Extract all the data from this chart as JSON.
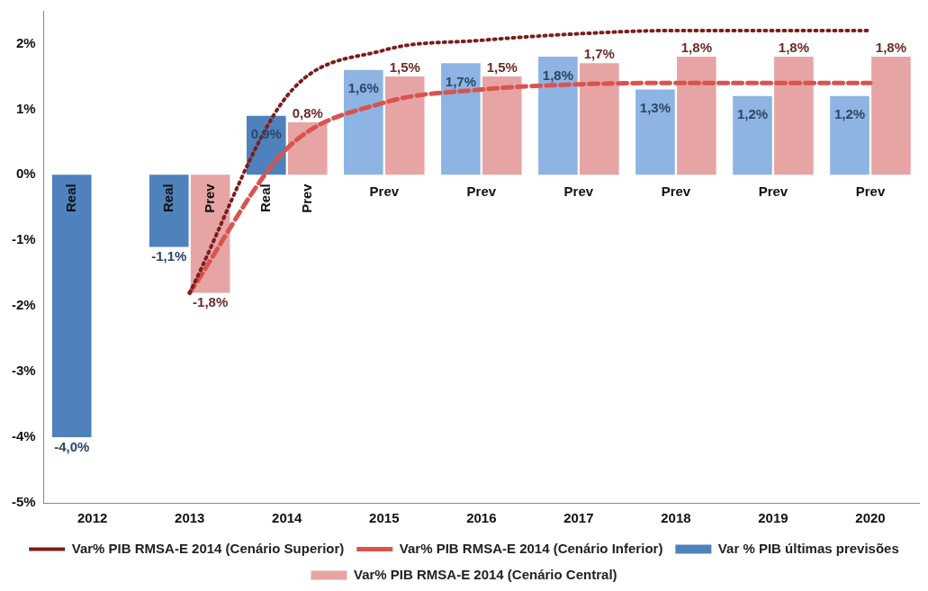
{
  "chart_data": {
    "type": "bar",
    "categories": [
      "2012",
      "2013",
      "2014",
      "2015",
      "2016",
      "2017",
      "2018",
      "2019",
      "2020"
    ],
    "series": [
      {
        "name": "Var % PIB últimas previsões",
        "color": "#4f81bd",
        "colors": [
          "#4f81bd",
          "#4f81bd",
          "#4f81bd",
          "#8db4e2",
          "#8db4e2",
          "#8db4e2",
          "#8db4e2",
          "#8db4e2",
          "#8db4e2"
        ],
        "values": [
          -4.0,
          -1.1,
          0.9,
          1.6,
          1.7,
          1.8,
          1.3,
          1.2,
          1.2
        ],
        "value_labels": [
          "-4,0%",
          "-1,1%",
          "0,9%",
          "1,6%",
          "1,7%",
          "1,8%",
          "1,3%",
          "1,2%",
          "1,2%"
        ]
      },
      {
        "name": "Var% PIB RMSA-E 2014 (Cenário Central)",
        "color": "#c0504d",
        "colors": [
          "#e6a5a4",
          "#e6a5a4",
          "#e6a5a4",
          "#e6a5a4",
          "#e6a5a4",
          "#e6a5a4",
          "#e6a5a4",
          "#e6a5a4",
          "#e6a5a4"
        ],
        "values": [
          null,
          -1.8,
          0.8,
          1.5,
          1.5,
          1.7,
          1.8,
          1.8,
          1.8
        ],
        "value_labels": [
          null,
          "-1,8%",
          "0,8%",
          "1,5%",
          "1,5%",
          "1,7%",
          "1,8%",
          "1,8%",
          "1,8%"
        ]
      },
      {
        "name": "Var% PIB RMSA-E 2014 (Cenário Superior)",
        "type": "line",
        "line_style": "dotted",
        "marker": "none",
        "color": "#7b1e1e",
        "values": [
          null,
          -1.8,
          1.2,
          1.9,
          2.05,
          2.15,
          2.2,
          2.2,
          2.2
        ]
      },
      {
        "name": "Var% PIB RMSA-E 2014 (Cenário Inferior)",
        "type": "line",
        "line_style": "dashed",
        "marker": "none",
        "color": "#d9534f",
        "values": [
          null,
          -1.8,
          0.4,
          1.1,
          1.3,
          1.38,
          1.4,
          1.4,
          1.4
        ]
      }
    ],
    "ylim": [
      -5,
      2.5
    ],
    "yticks": [
      {
        "value": -5,
        "label": "-5%"
      },
      {
        "value": -4,
        "label": "-4%"
      },
      {
        "value": -3,
        "label": "-3%"
      },
      {
        "value": -2,
        "label": "-2%"
      },
      {
        "value": -1,
        "label": "-1%"
      },
      {
        "value": 0,
        "label": "0%"
      },
      {
        "value": 1,
        "label": "1%"
      },
      {
        "value": 2,
        "label": "2%"
      }
    ],
    "grid": false,
    "legend": "bottom",
    "annotations": [
      "Real",
      "Real",
      "Prev",
      "Real",
      "Prev",
      "Prev",
      "Prev",
      "Prev",
      "Prev",
      "Prev",
      "Prev"
    ]
  }
}
